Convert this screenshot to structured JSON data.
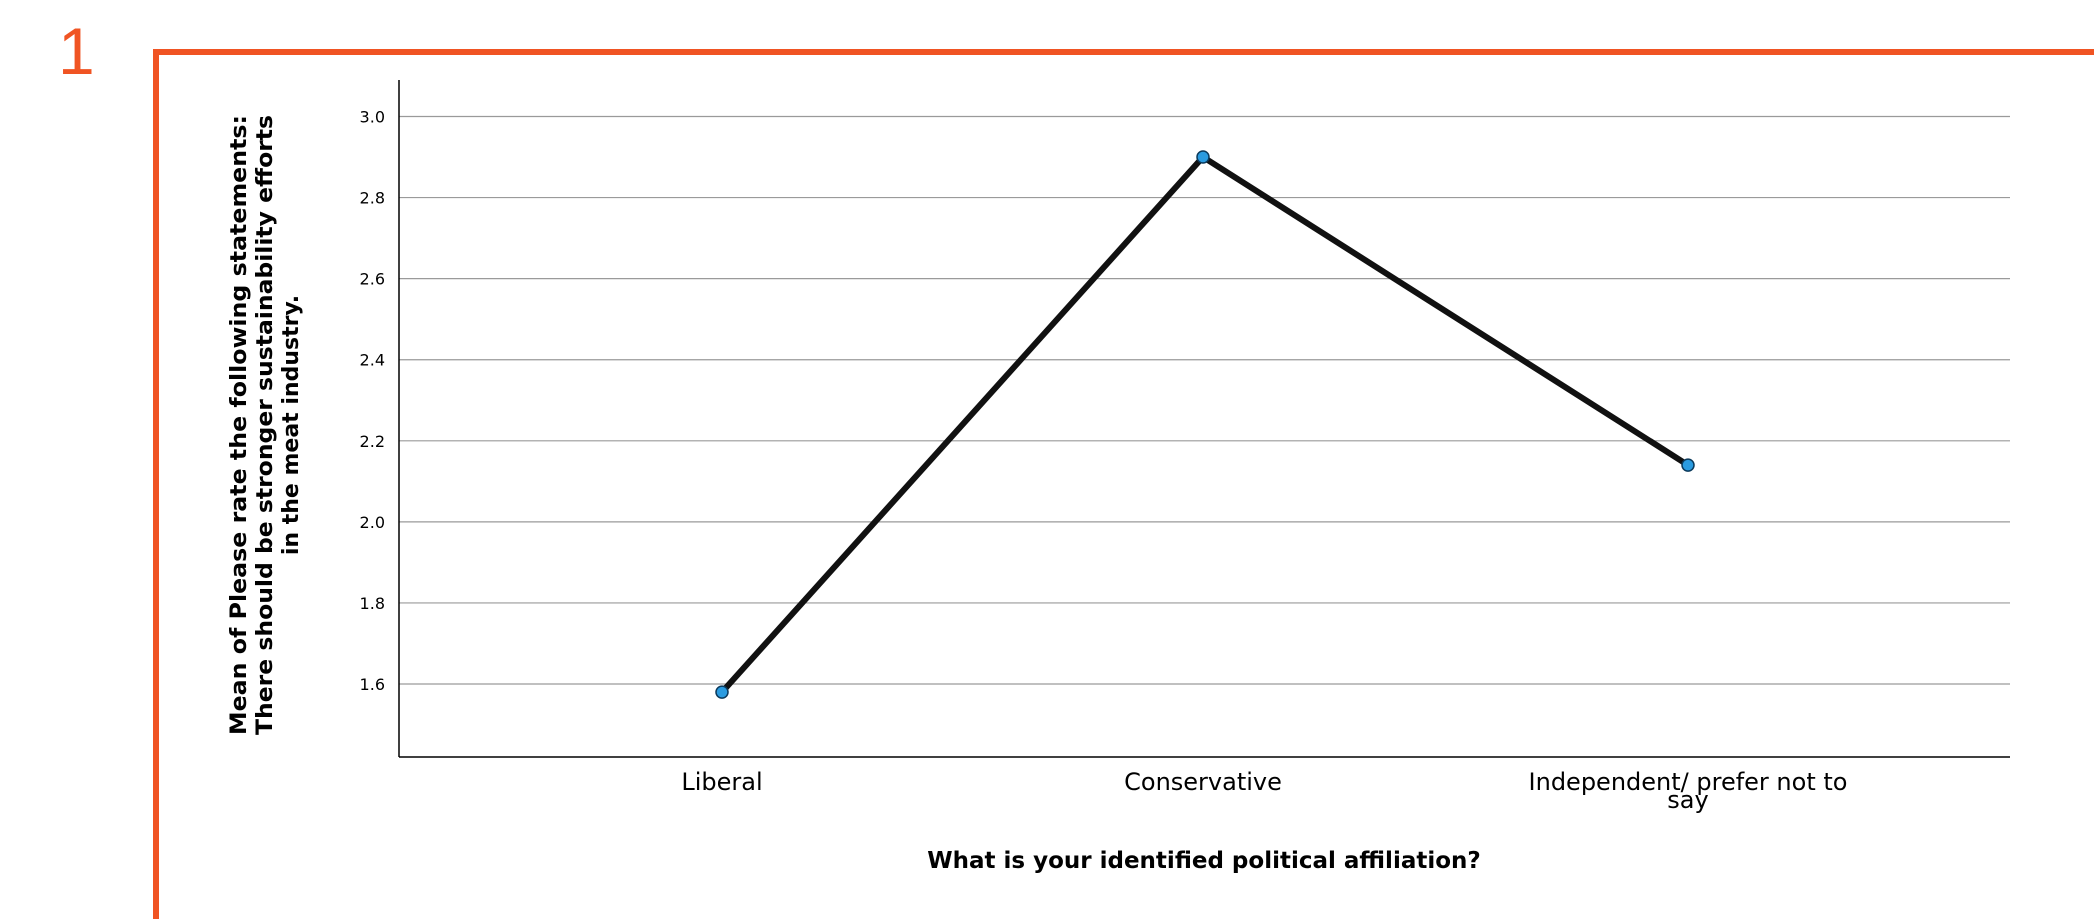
{
  "slide": {
    "number": "1"
  },
  "theme": {
    "accent": "#f05423",
    "line": "#111111",
    "marker": "#2a9be0",
    "grid": "#9a9a9a"
  },
  "chart_data": {
    "type": "line",
    "categories": [
      "Liberal",
      "Conservative",
      "Independent/ prefer not to say"
    ],
    "category_lines": [
      [
        "Liberal"
      ],
      [
        "Conservative"
      ],
      [
        "Independent/ prefer not to",
        "say"
      ]
    ],
    "values": [
      1.58,
      2.9,
      2.14
    ],
    "yticks": [
      "1.6",
      "1.8",
      "2.0",
      "2.2",
      "2.4",
      "2.6",
      "2.8",
      "3.0"
    ],
    "ylim": [
      1.42,
      3.09
    ],
    "xlabel": "What is your identified political affiliation?",
    "ylabel_lines": [
      "Mean of Please rate the following statements:",
      "There should be stronger sustainability efforts",
      "in the meat industry."
    ],
    "grid": true,
    "legend": false
  }
}
